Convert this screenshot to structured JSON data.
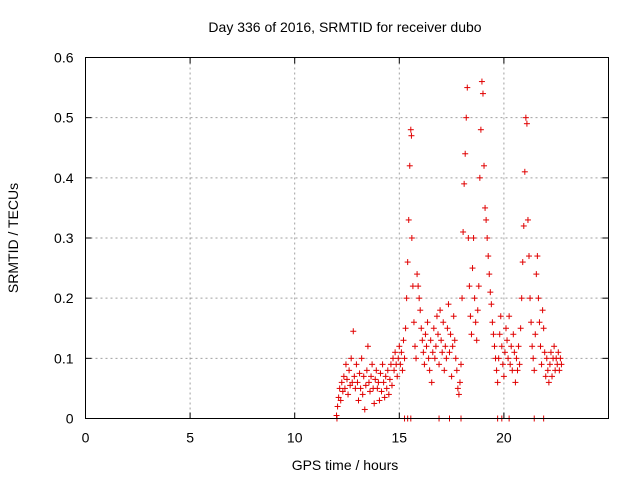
{
  "chart_data": {
    "type": "scatter",
    "title": "Day 336 of 2016, SRMTID for receiver dubo",
    "xlabel": "GPS time / hours",
    "ylabel": "SRMTID / TECUs",
    "xlim": [
      0,
      25
    ],
    "ylim": [
      0,
      0.6
    ],
    "x_ticks": [
      0,
      5,
      10,
      15,
      20
    ],
    "y_ticks": [
      0,
      0.1,
      0.2,
      0.3,
      0.4,
      0.5,
      0.6
    ],
    "x_tick_labels": [
      "0",
      "5",
      "10",
      "15",
      "20"
    ],
    "y_tick_labels": [
      "0",
      "0.1",
      "0.2",
      "0.3",
      "0.4",
      "0.5",
      "0.6"
    ],
    "grid": true,
    "marker": "+",
    "color": "#e00000",
    "series": [
      {
        "name": "SRMTID",
        "points": [
          [
            12.0,
            0.005
          ],
          [
            12.05,
            0.02
          ],
          [
            12.1,
            0.035
          ],
          [
            12.15,
            0.05
          ],
          [
            12.2,
            0.03
          ],
          [
            12.25,
            0.06
          ],
          [
            12.3,
            0.045
          ],
          [
            12.35,
            0.07
          ],
          [
            12.4,
            0.05
          ],
          [
            12.45,
            0.09
          ],
          [
            12.5,
            0.065
          ],
          [
            12.55,
            0.04
          ],
          [
            12.6,
            0.08
          ],
          [
            12.65,
            0.055
          ],
          [
            12.7,
            0.1
          ],
          [
            12.75,
            0.06
          ],
          [
            12.8,
            0.145
          ],
          [
            12.85,
            0.07
          ],
          [
            12.9,
            0.05
          ],
          [
            12.95,
            0.09
          ],
          [
            13.0,
            0.06
          ],
          [
            13.05,
            0.03
          ],
          [
            13.1,
            0.075
          ],
          [
            13.15,
            0.05
          ],
          [
            13.2,
            0.1
          ],
          [
            13.25,
            0.04
          ],
          [
            13.3,
            0.07
          ],
          [
            13.35,
            0.015
          ],
          [
            13.4,
            0.055
          ],
          [
            13.45,
            0.08
          ],
          [
            13.5,
            0.12
          ],
          [
            13.55,
            0.06
          ],
          [
            13.6,
            0.045
          ],
          [
            13.65,
            0.07
          ],
          [
            13.7,
            0.09
          ],
          [
            13.75,
            0.05
          ],
          [
            13.8,
            0.025
          ],
          [
            13.85,
            0.065
          ],
          [
            13.9,
            0.08
          ],
          [
            13.95,
            0.05
          ],
          [
            14.0,
            0.06
          ],
          [
            14.05,
            0.03
          ],
          [
            14.1,
            0.075
          ],
          [
            14.15,
            0.045
          ],
          [
            14.2,
            0.09
          ],
          [
            14.25,
            0.06
          ],
          [
            14.3,
            0.035
          ],
          [
            14.35,
            0.07
          ],
          [
            14.4,
            0.05
          ],
          [
            14.45,
            0.08
          ],
          [
            14.5,
            0.04
          ],
          [
            14.55,
            0.065
          ],
          [
            14.6,
            0.09
          ],
          [
            14.65,
            0.055
          ],
          [
            14.7,
            0.1
          ],
          [
            14.75,
            0.08
          ],
          [
            14.8,
            0.11
          ],
          [
            14.85,
            0.09
          ],
          [
            14.9,
            0.07
          ],
          [
            14.95,
            0.1
          ],
          [
            15.0,
            0.12
          ],
          [
            15.05,
            0.09
          ],
          [
            15.1,
            0.11
          ],
          [
            15.15,
            0.08
          ],
          [
            15.2,
            0.13
          ],
          [
            15.25,
            0.1
          ],
          [
            15.3,
            0.15
          ],
          [
            15.35,
            0.2
          ],
          [
            15.4,
            0.26
          ],
          [
            15.45,
            0.33
          ],
          [
            15.5,
            0.42
          ],
          [
            15.55,
            0.48
          ],
          [
            15.58,
            0.47
          ],
          [
            15.6,
            0.3
          ],
          [
            15.65,
            0.22
          ],
          [
            15.7,
            0.16
          ],
          [
            15.75,
            0.12
          ],
          [
            15.8,
            0.1
          ],
          [
            15.85,
            0.24
          ],
          [
            15.9,
            0.22
          ],
          [
            15.95,
            0.2
          ],
          [
            16.0,
            0.18
          ],
          [
            16.05,
            0.15
          ],
          [
            16.1,
            0.13
          ],
          [
            16.15,
            0.11
          ],
          [
            16.2,
            0.09
          ],
          [
            16.25,
            0.14
          ],
          [
            16.3,
            0.12
          ],
          [
            16.35,
            0.16
          ],
          [
            16.4,
            0.1
          ],
          [
            16.45,
            0.08
          ],
          [
            16.5,
            0.13
          ],
          [
            16.55,
            0.06
          ],
          [
            16.6,
            0.11
          ],
          [
            16.65,
            0.15
          ],
          [
            16.7,
            0.1
          ],
          [
            16.75,
            0.12
          ],
          [
            16.8,
            0.17
          ],
          [
            16.85,
            0.14
          ],
          [
            16.9,
            0.09
          ],
          [
            16.95,
            0.18
          ],
          [
            17.0,
            0.13
          ],
          [
            17.05,
            0.11
          ],
          [
            17.1,
            0.16
          ],
          [
            17.15,
            0.08
          ],
          [
            17.2,
            0.12
          ],
          [
            17.25,
            0.1
          ],
          [
            17.3,
            0.15
          ],
          [
            17.35,
            0.19
          ],
          [
            17.4,
            0.11
          ],
          [
            17.45,
            0.14
          ],
          [
            17.5,
            0.07
          ],
          [
            17.55,
            0.12
          ],
          [
            17.6,
            0.17
          ],
          [
            17.65,
            0.13
          ],
          [
            17.7,
            0.1
          ],
          [
            17.75,
            0.08
          ],
          [
            17.8,
            0.05
          ],
          [
            17.85,
            0.04
          ],
          [
            17.9,
            0.06
          ],
          [
            17.95,
            0.09
          ],
          [
            18.0,
            0.2
          ],
          [
            18.05,
            0.31
          ],
          [
            18.1,
            0.39
          ],
          [
            18.15,
            0.44
          ],
          [
            18.2,
            0.5
          ],
          [
            18.25,
            0.55
          ],
          [
            18.3,
            0.3
          ],
          [
            18.35,
            0.22
          ],
          [
            18.4,
            0.17
          ],
          [
            18.45,
            0.14
          ],
          [
            18.5,
            0.25
          ],
          [
            18.55,
            0.3
          ],
          [
            18.6,
            0.2
          ],
          [
            18.65,
            0.16
          ],
          [
            18.7,
            0.13
          ],
          [
            18.75,
            0.18
          ],
          [
            18.8,
            0.22
          ],
          [
            18.85,
            0.4
          ],
          [
            18.9,
            0.48
          ],
          [
            18.95,
            0.56
          ],
          [
            19.0,
            0.54
          ],
          [
            19.05,
            0.42
          ],
          [
            19.1,
            0.35
          ],
          [
            19.15,
            0.33
          ],
          [
            19.2,
            0.3
          ],
          [
            19.25,
            0.27
          ],
          [
            19.3,
            0.24
          ],
          [
            19.35,
            0.21
          ],
          [
            19.4,
            0.19
          ],
          [
            19.45,
            0.16
          ],
          [
            19.5,
            0.14
          ],
          [
            19.55,
            0.12
          ],
          [
            19.6,
            0.1
          ],
          [
            19.65,
            0.08
          ],
          [
            19.7,
            0.06
          ],
          [
            19.75,
            0.1
          ],
          [
            19.8,
            0.14
          ],
          [
            19.85,
            0.17
          ],
          [
            19.9,
            0.12
          ],
          [
            19.95,
            0.09
          ],
          [
            20.0,
            0.07
          ],
          [
            20.05,
            0.11
          ],
          [
            20.1,
            0.15
          ],
          [
            20.15,
            0.13
          ],
          [
            20.2,
            0.1
          ],
          [
            20.25,
            0.17
          ],
          [
            20.3,
            0.09
          ],
          [
            20.35,
            0.12
          ],
          [
            20.4,
            0.08
          ],
          [
            20.45,
            0.14
          ],
          [
            20.5,
            0.11
          ],
          [
            20.55,
            0.06
          ],
          [
            20.6,
            0.1
          ],
          [
            20.65,
            0.08
          ],
          [
            20.7,
            0.12
          ],
          [
            20.75,
            0.09
          ],
          [
            20.8,
            0.15
          ],
          [
            20.85,
            0.2
          ],
          [
            20.9,
            0.26
          ],
          [
            20.95,
            0.32
          ],
          [
            21.0,
            0.41
          ],
          [
            21.05,
            0.5
          ],
          [
            21.1,
            0.49
          ],
          [
            21.15,
            0.33
          ],
          [
            21.2,
            0.27
          ],
          [
            21.25,
            0.2
          ],
          [
            21.3,
            0.16
          ],
          [
            21.35,
            0.12
          ],
          [
            21.4,
            0.1
          ],
          [
            21.45,
            0.08
          ],
          [
            21.5,
            0.14
          ],
          [
            21.55,
            0.24
          ],
          [
            21.6,
            0.27
          ],
          [
            21.65,
            0.2
          ],
          [
            21.7,
            0.16
          ],
          [
            21.75,
            0.12
          ],
          [
            21.8,
            0.09
          ],
          [
            21.85,
            0.18
          ],
          [
            21.9,
            0.15
          ],
          [
            21.95,
            0.11
          ],
          [
            22.0,
            0.07
          ],
          [
            22.05,
            0.1
          ],
          [
            22.1,
            0.08
          ],
          [
            22.15,
            0.06
          ],
          [
            22.2,
            0.09
          ],
          [
            22.25,
            0.11
          ],
          [
            22.3,
            0.07
          ],
          [
            22.35,
            0.1
          ],
          [
            22.4,
            0.12
          ],
          [
            22.45,
            0.08
          ],
          [
            22.5,
            0.1
          ],
          [
            22.55,
            0.09
          ],
          [
            22.6,
            0.11
          ],
          [
            22.65,
            0.08
          ],
          [
            22.7,
            0.1
          ],
          [
            22.75,
            0.09
          ],
          [
            12.02,
            0.0
          ],
          [
            15.25,
            0.0
          ],
          [
            15.4,
            0.0
          ],
          [
            15.55,
            0.0
          ],
          [
            16.9,
            0.0
          ],
          [
            17.4,
            0.0
          ],
          [
            17.95,
            0.0
          ],
          [
            19.7,
            0.0
          ],
          [
            19.9,
            0.0
          ],
          [
            20.25,
            0.0
          ],
          [
            21.45,
            0.0
          ],
          [
            21.9,
            0.0
          ]
        ]
      }
    ]
  }
}
